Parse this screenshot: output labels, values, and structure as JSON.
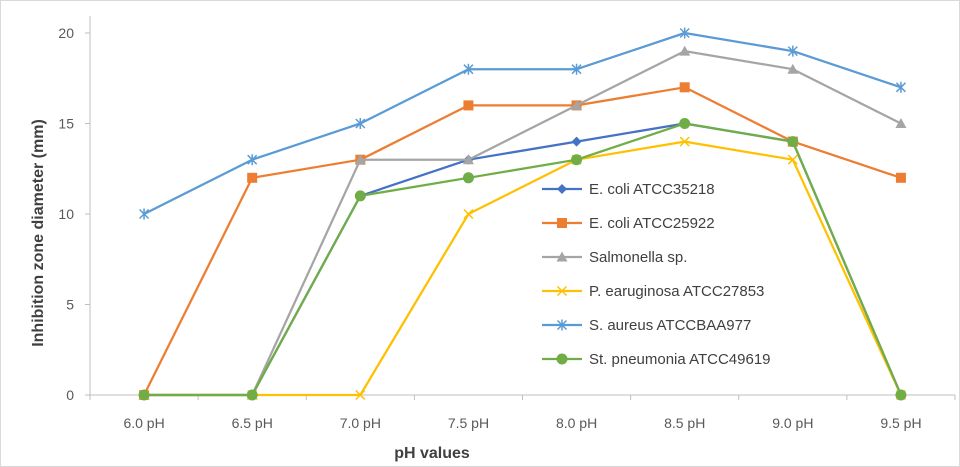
{
  "chart_data": {
    "type": "line",
    "title": "",
    "xlabel": "pH values",
    "ylabel": "Inhibition zone diameter (mm)",
    "categories": [
      "6.0 pH",
      "6.5 pH",
      "7.0 pH",
      "7.5 pH",
      "8.0 pH",
      "8.5 pH",
      "9.0 pH",
      "9.5 pH"
    ],
    "ylim": [
      0,
      20
    ],
    "yticks": [
      0,
      5,
      10,
      15,
      20
    ],
    "grid": false,
    "legend_position": "right-center",
    "series": [
      {
        "name": "E. coli ATCC35218",
        "color": "#4472C4",
        "marker": "diamond",
        "values": [
          0,
          0,
          11,
          13,
          14,
          15,
          14,
          0
        ]
      },
      {
        "name": "E. coli ATCC25922",
        "color": "#ED7D31",
        "marker": "square",
        "values": [
          0,
          12,
          13,
          16,
          16,
          17,
          14,
          12
        ]
      },
      {
        "name": "Salmonella sp.",
        "color": "#A5A5A5",
        "marker": "triangle",
        "values": [
          0,
          0,
          13,
          13,
          16,
          19,
          18,
          15
        ]
      },
      {
        "name": "P. earuginosa ATCC27853",
        "color": "#FFC000",
        "marker": "x",
        "values": [
          0,
          0,
          0,
          10,
          13,
          14,
          13,
          0
        ]
      },
      {
        "name": "S. aureus ATCCBAA977",
        "color": "#5B9BD5",
        "marker": "star",
        "values": [
          10,
          13,
          15,
          18,
          18,
          20,
          19,
          17
        ]
      },
      {
        "name": "St. pneumonia ATCC49619",
        "color": "#70AD47",
        "marker": "circle",
        "values": [
          0,
          0,
          11,
          12,
          13,
          15,
          14,
          0
        ]
      }
    ]
  }
}
